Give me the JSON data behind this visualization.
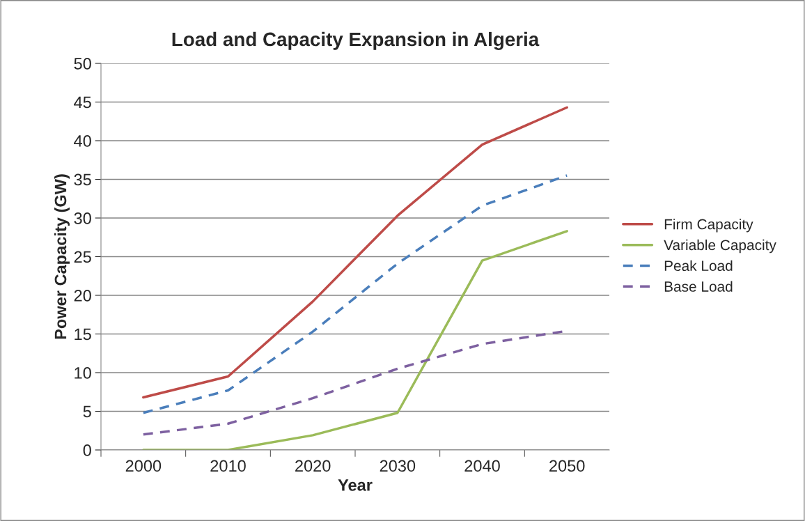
{
  "chart_data": {
    "type": "line",
    "title": "Load and Capacity Expansion in Algeria",
    "xlabel": "Year",
    "ylabel": "Power Capacity (GW)",
    "categories": [
      "2000",
      "2010",
      "2020",
      "2030",
      "2040",
      "2050"
    ],
    "series": [
      {
        "name": "Firm Capacity",
        "color": "#be4b48",
        "line_style": "solid",
        "values": [
          6.8,
          9.5,
          19.2,
          30.3,
          39.5,
          44.3
        ]
      },
      {
        "name": "Variable Capacity",
        "color": "#9bbb59",
        "line_style": "solid",
        "values": [
          0,
          0,
          1.9,
          4.8,
          24.5,
          28.3
        ]
      },
      {
        "name": "Peak Load",
        "color": "#4a7ebb",
        "line_style": "dashed",
        "values": [
          4.8,
          7.7,
          15.3,
          24.1,
          31.6,
          35.5
        ]
      },
      {
        "name": "Base Load",
        "color": "#7d60a0",
        "line_style": "dashed",
        "values": [
          2.0,
          3.4,
          6.7,
          10.5,
          13.7,
          15.4
        ]
      }
    ],
    "ylim": [
      0,
      50
    ],
    "yticks": [
      0,
      5,
      10,
      15,
      20,
      25,
      30,
      35,
      40,
      45,
      50
    ],
    "grid": "y",
    "legend": "right",
    "marker": "none"
  }
}
